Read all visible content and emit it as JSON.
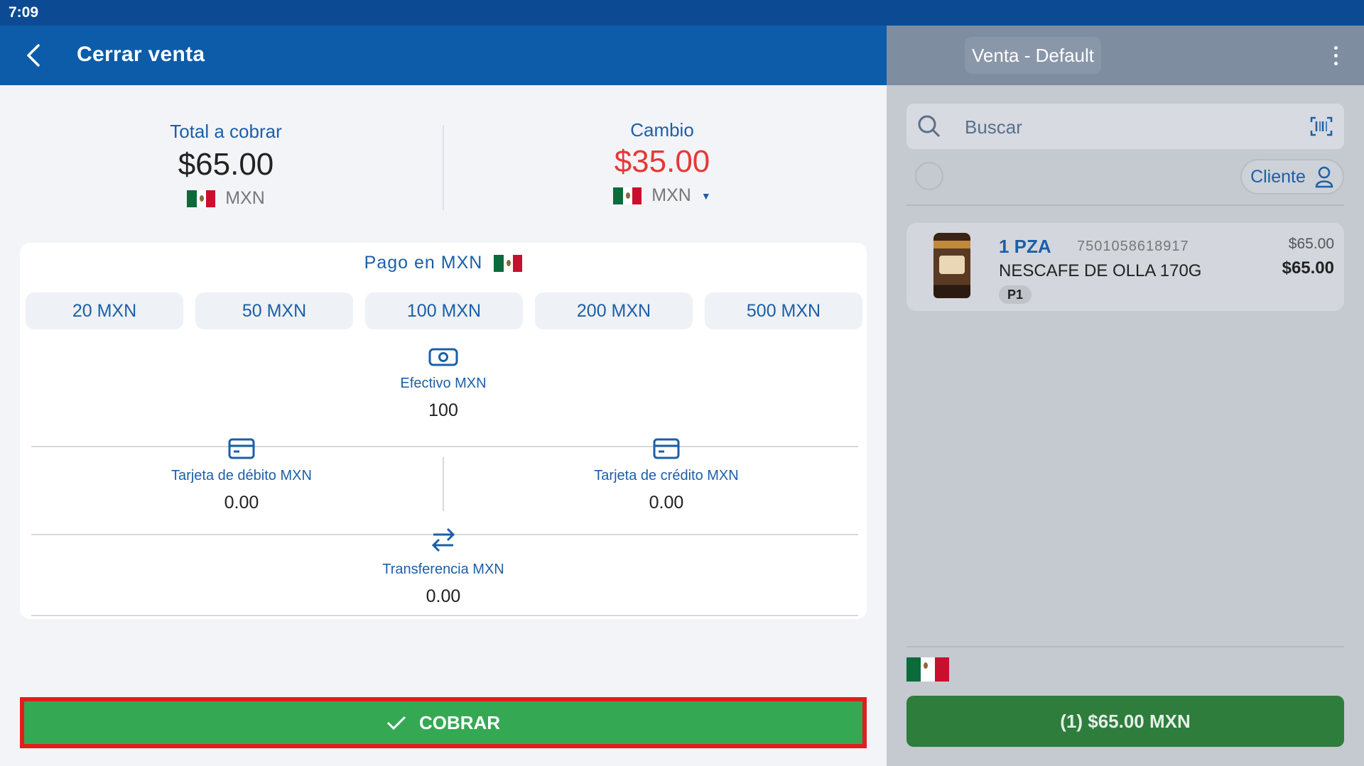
{
  "status_bar": {
    "time": "7:09"
  },
  "header": {
    "title": "Cerrar venta",
    "back_icon": "chevron-left-icon"
  },
  "right_header": {
    "sale_label": "Venta - Default",
    "menu_icon": "more-vert-icon"
  },
  "summary": {
    "total_label": "Total a cobrar",
    "total_amount": "$65.00",
    "total_currency": "MXN",
    "change_label": "Cambio",
    "change_amount": "$35.00",
    "change_currency": "MXN",
    "change_color": "#e53935"
  },
  "payment": {
    "title": "Pago en MXN",
    "denominations": [
      "20 MXN",
      "50 MXN",
      "100 MXN",
      "200 MXN",
      "500 MXN"
    ],
    "methods": {
      "cash": {
        "label": "Efectivo MXN",
        "value": "100",
        "icon": "cash-icon"
      },
      "debit": {
        "label": "Tarjeta de débito MXN",
        "value": "0.00",
        "icon": "card-icon"
      },
      "credit": {
        "label": "Tarjeta de crédito MXN",
        "value": "0.00",
        "icon": "card-icon"
      },
      "transfer": {
        "label": "Transferencia MXN",
        "value": "0.00",
        "icon": "transfer-icon"
      }
    }
  },
  "checkout": {
    "label": "COBRAR",
    "icon": "check-icon",
    "color": "#35a853"
  },
  "search": {
    "placeholder": "Buscar"
  },
  "client": {
    "label": "Cliente"
  },
  "cart": {
    "items": [
      {
        "qty": "1 PZA",
        "code": "7501058618917",
        "name": "NESCAFE DE OLLA 170G",
        "price_level": "P1",
        "unit_price": "$65.00",
        "total": "$65.00"
      }
    ],
    "total_button": "(1) $65.00 MXN"
  },
  "colors": {
    "header_blue": "#0d5ca9",
    "accent_blue": "#1c5fa8",
    "checkout_green": "#35a853",
    "highlight_red": "#e01e1e"
  }
}
